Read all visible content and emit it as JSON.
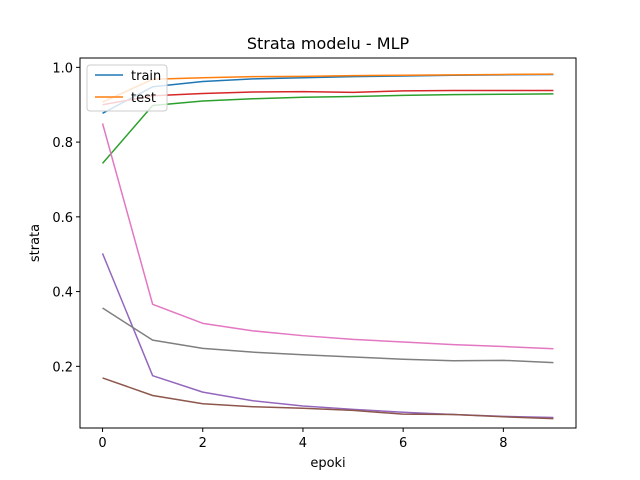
{
  "chart_data": {
    "type": "line",
    "title": "Strata modelu - MLP",
    "xlabel": "epoki",
    "ylabel": "strata",
    "xlim": [
      -0.45,
      9.45
    ],
    "ylim": [
      0.035,
      1.025
    ],
    "x_ticks": [
      0,
      2,
      4,
      6,
      8
    ],
    "y_ticks": [
      0.2,
      0.4,
      0.6,
      0.8,
      1.0
    ],
    "y_tick_labels": [
      "0.2",
      "0.4",
      "0.6",
      "0.8",
      "1.0"
    ],
    "legend": {
      "placement": "upper-left",
      "entries": [
        {
          "label": "train",
          "color": "#1f77b4"
        },
        {
          "label": "test",
          "color": "#ff7f0e"
        }
      ]
    },
    "x": [
      0,
      1,
      2,
      3,
      4,
      5,
      6,
      7,
      8,
      9
    ],
    "series": [
      {
        "color": "#1f77b4",
        "values": [
          0.877,
          0.948,
          0.962,
          0.969,
          0.972,
          0.975,
          0.977,
          0.979,
          0.98,
          0.981
        ]
      },
      {
        "color": "#ff7f0e",
        "values": [
          0.907,
          0.968,
          0.972,
          0.975,
          0.976,
          0.978,
          0.979,
          0.98,
          0.981,
          0.982
        ]
      },
      {
        "color": "#2ca02c",
        "values": [
          0.743,
          0.898,
          0.91,
          0.916,
          0.92,
          0.922,
          0.925,
          0.927,
          0.928,
          0.929
        ]
      },
      {
        "color": "#d62728",
        "values": [
          0.9,
          0.924,
          0.93,
          0.934,
          0.935,
          0.933,
          0.937,
          0.938,
          0.938,
          0.938
        ]
      },
      {
        "color": "#9467bd",
        "values": [
          0.502,
          0.175,
          0.131,
          0.108,
          0.094,
          0.085,
          0.077,
          0.071,
          0.066,
          0.063
        ]
      },
      {
        "color": "#8c564b",
        "values": [
          0.169,
          0.122,
          0.1,
          0.092,
          0.088,
          0.082,
          0.072,
          0.071,
          0.065,
          0.06
        ]
      },
      {
        "color": "#e377c2",
        "values": [
          0.85,
          0.366,
          0.315,
          0.295,
          0.282,
          0.272,
          0.265,
          0.258,
          0.253,
          0.247
        ]
      },
      {
        "color": "#7f7f7f",
        "values": [
          0.356,
          0.27,
          0.248,
          0.238,
          0.231,
          0.225,
          0.219,
          0.215,
          0.216,
          0.21
        ]
      }
    ]
  }
}
